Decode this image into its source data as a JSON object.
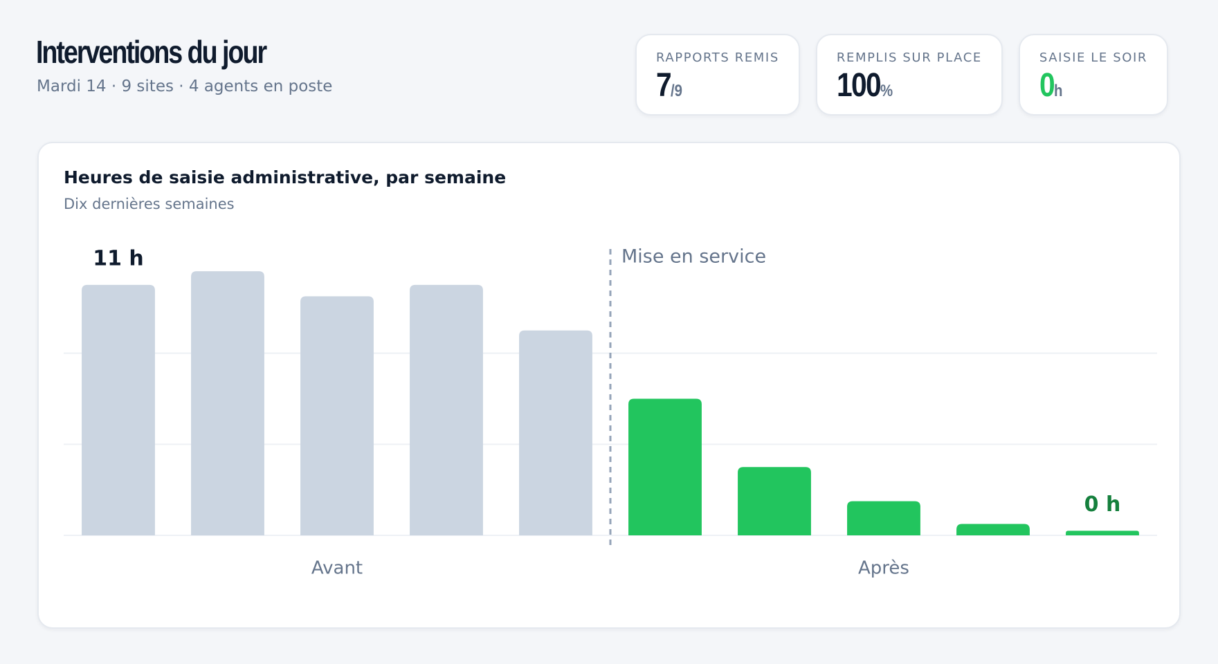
{
  "header": {
    "title": "Interventions du jour",
    "subtitle": "Mardi 14 · 9 sites · 4 agents en poste"
  },
  "kpis": [
    {
      "label": "RAPPORTS REMIS",
      "value": 7,
      "unit": "/9",
      "color": "#0f1b2d"
    },
    {
      "label": "REMPLIS SUR PLACE",
      "value": 100,
      "unit": "%",
      "color": "#0f1b2d"
    },
    {
      "label": "SAISIE LE SOIR",
      "value": 0,
      "unit": "h",
      "color": "#22c55e"
    }
  ],
  "chart_data": {
    "type": "bar",
    "title": "Heures de saisie administrative, par semaine",
    "subtitle": "Dix dernières semaines",
    "categories": [
      null,
      null,
      null,
      null,
      null,
      null,
      null,
      null,
      null,
      null
    ],
    "series": [
      {
        "name": "Avant",
        "color": "#cbd5e1",
        "values": [
          11,
          11.6,
          10.5,
          11,
          9,
          null,
          null,
          null,
          null,
          null
        ],
        "value_labels": [
          "11 h",
          null,
          null,
          null,
          null,
          null,
          null,
          null,
          null,
          null
        ],
        "label_color": "#0f1b2d"
      },
      {
        "name": "Après",
        "color": "#22c55e",
        "values": [
          null,
          null,
          null,
          null,
          null,
          6,
          3,
          1.5,
          0.5,
          0.2
        ],
        "value_labels": [
          null,
          null,
          null,
          null,
          null,
          null,
          null,
          null,
          null,
          "0 h"
        ],
        "label_color": "#15803d"
      }
    ],
    "annotation": "Mise en service",
    "ylim": [
      0,
      12
    ],
    "yticks": [
      0,
      4,
      8
    ],
    "grid": true
  }
}
